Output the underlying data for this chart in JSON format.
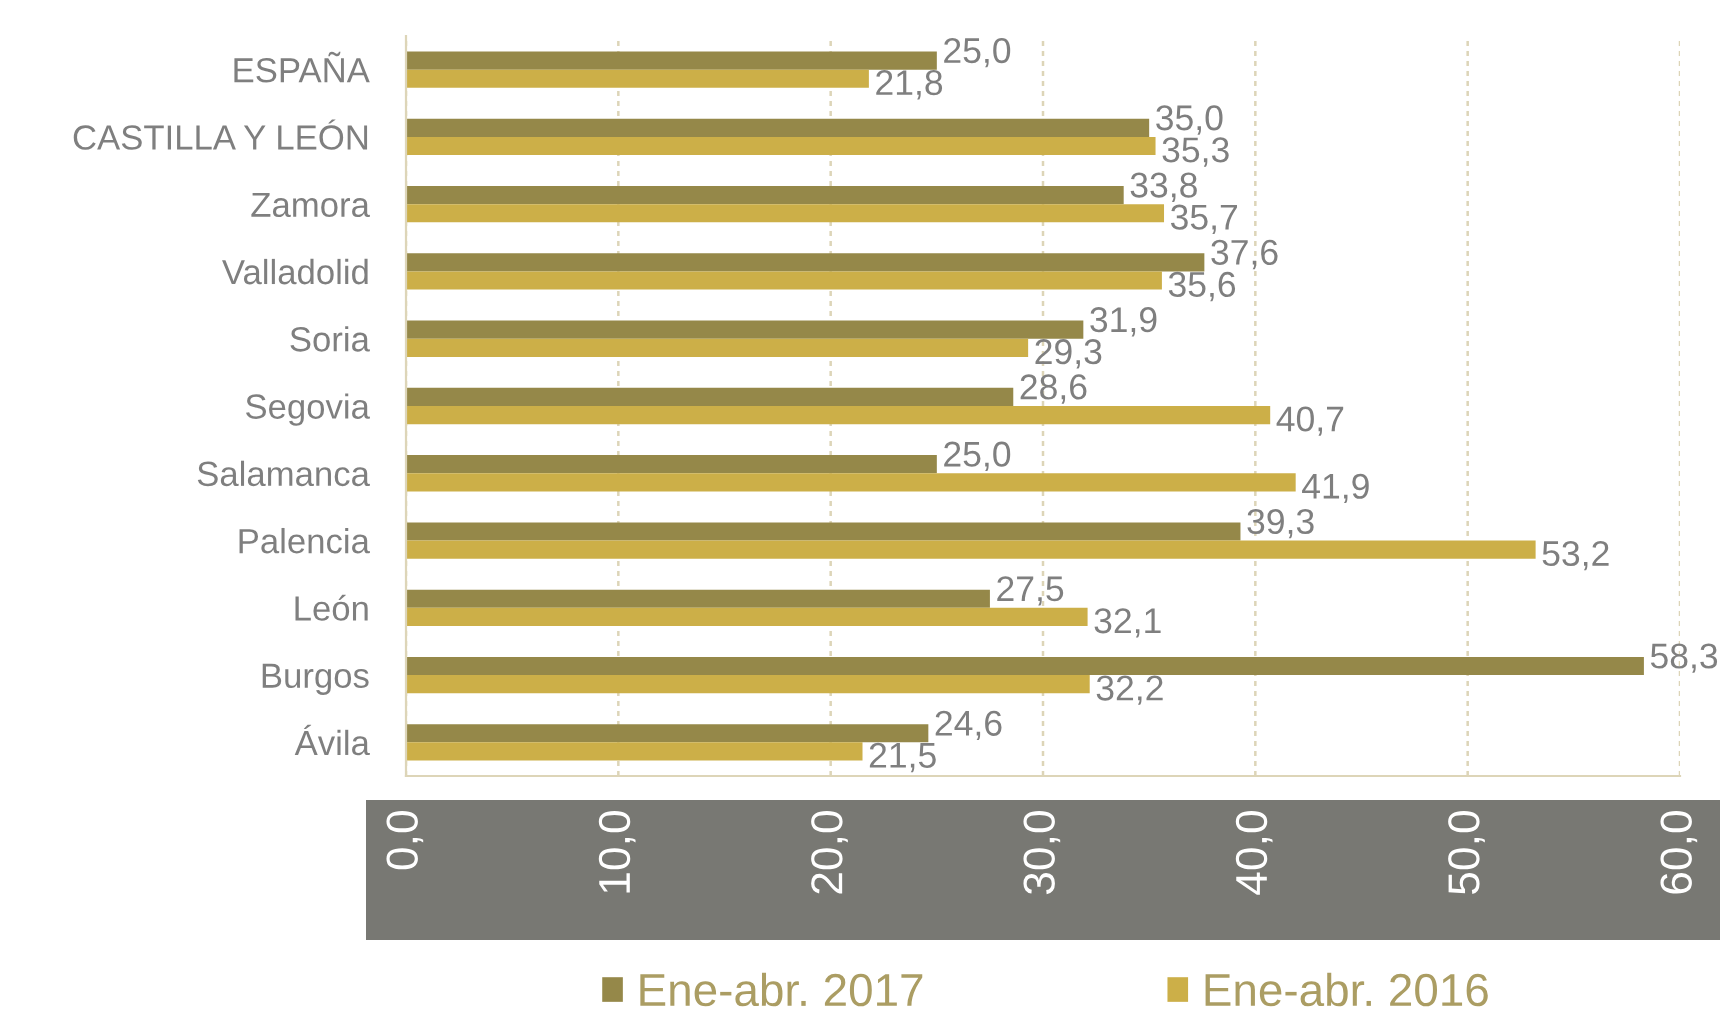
{
  "chart_data": {
    "type": "bar",
    "orientation": "horizontal",
    "categories": [
      "ESPAÑA",
      "CASTILLA Y LEÓN",
      "Zamora",
      "Valladolid",
      "Soria",
      "Segovia",
      "Salamanca",
      "Palencia",
      "León",
      "Burgos",
      "Ávila"
    ],
    "series": [
      {
        "name": "Ene-abr. 2017",
        "color": "#958849",
        "values": [
          25.0,
          35.0,
          33.8,
          37.6,
          31.9,
          28.6,
          25.0,
          39.3,
          27.5,
          58.3,
          24.6
        ],
        "value_labels": [
          "25,0",
          "35,0",
          "33,8",
          "37,6",
          "31,9",
          "28,6",
          "25,0",
          "39,3",
          "27,5",
          "58,3",
          "24,6"
        ]
      },
      {
        "name": "Ene-abr. 2016",
        "color": "#ccaf48",
        "values": [
          21.8,
          35.3,
          35.7,
          35.6,
          29.3,
          40.7,
          41.9,
          53.2,
          32.1,
          32.2,
          21.5
        ],
        "value_labels": [
          "21,8",
          "35,3",
          "35,7",
          "35,6",
          "29,3",
          "40,7",
          "41,9",
          "53,2",
          "32,1",
          "32,2",
          "21,5"
        ]
      }
    ],
    "xlim": [
      0,
      60
    ],
    "xticks": [
      {
        "value": 0,
        "label": "0,0"
      },
      {
        "value": 10,
        "label": "10,0"
      },
      {
        "value": 20,
        "label": "20,0"
      },
      {
        "value": 30,
        "label": "30,0"
      },
      {
        "value": 40,
        "label": "40,0"
      },
      {
        "value": 50,
        "label": "50,0"
      },
      {
        "value": 60,
        "label": "60,0"
      }
    ],
    "grid": "x",
    "legend": "bottom"
  }
}
